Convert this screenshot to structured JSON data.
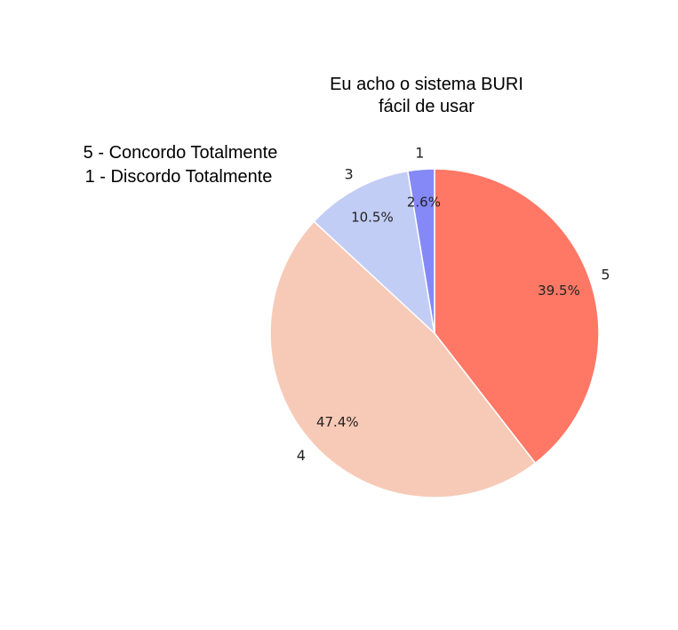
{
  "chart_data": {
    "type": "pie",
    "title": [
      "Eu acho o sistema BURI",
      "fácil de usar"
    ],
    "legend_note": [
      "5 - Concordo Totalmente",
      "1 - Discordo Totalmente"
    ],
    "categories": [
      "5",
      "4",
      "3",
      "1"
    ],
    "values": [
      39.5,
      47.4,
      10.5,
      2.6
    ],
    "value_labels": [
      "39.5%",
      "47.4%",
      "10.5%",
      "2.6%"
    ],
    "colors": [
      "#fe7865",
      "#f7cab7",
      "#c2cdf5",
      "#8489f7"
    ],
    "start_angle": "90deg-counterclockwise-reversed",
    "legend_placement": "top-left"
  }
}
